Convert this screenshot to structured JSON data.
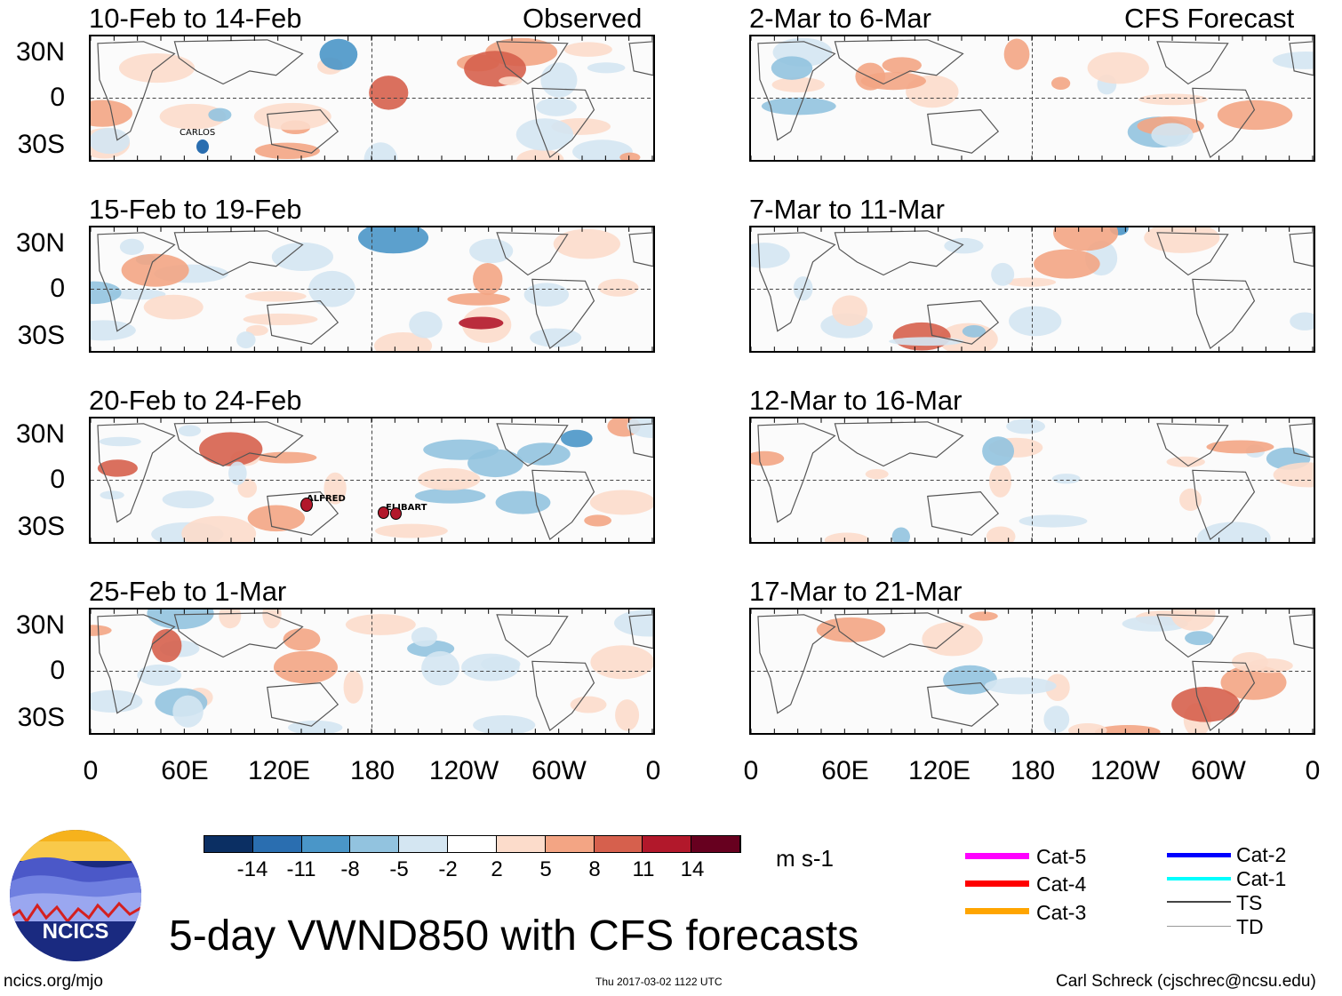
{
  "panels_observed": [
    {
      "title": "10-Feb to 14-Feb",
      "tag": "Observed"
    },
    {
      "title": "15-Feb to 19-Feb"
    },
    {
      "title": "20-Feb to 24-Feb"
    },
    {
      "title": "25-Feb to 1-Mar"
    }
  ],
  "panels_forecast": [
    {
      "title": "2-Mar to 6-Mar",
      "tag": "CFS Forecast"
    },
    {
      "title": "7-Mar to 11-Mar"
    },
    {
      "title": "12-Mar to 16-Mar"
    },
    {
      "title": "17-Mar to 21-Mar"
    }
  ],
  "lat_labels": [
    "30N",
    "0",
    "30S"
  ],
  "lon_labels": [
    "0",
    "60E",
    "120E",
    "180",
    "120W",
    "60W",
    "0"
  ],
  "storms": {
    "carlos": "CARLOS",
    "alfred": "ALFRED",
    "eli": "ELI",
    "bart": "BART"
  },
  "colorbar": {
    "colors": [
      "#0b2f63",
      "#2a6eb0",
      "#4a96c8",
      "#92c3df",
      "#d4e6f2",
      "#ffffff",
      "#fcdccb",
      "#f3a584",
      "#d6604d",
      "#b2182b",
      "#67001f"
    ],
    "labels": [
      "-14",
      "-11",
      "-8",
      "-5",
      "-2",
      "2",
      "5",
      "8",
      "11",
      "14"
    ],
    "units": "m s-1"
  },
  "legend": [
    {
      "label": "Cat-5",
      "color": "#ff00ff"
    },
    {
      "label": "Cat-4",
      "color": "#ff0000"
    },
    {
      "label": "Cat-3",
      "color": "#ffa500"
    },
    {
      "label": "Cat-2",
      "color": "#0000ff"
    },
    {
      "label": "Cat-1",
      "color": "#00ffff"
    },
    {
      "label": "TS",
      "color": "#444444"
    },
    {
      "label": "TD",
      "color": "#999999"
    }
  ],
  "logo_text": "NCICS",
  "main_title": "5-day VWND850 with CFS forecasts",
  "footer": {
    "left": "ncics.org/mjo",
    "center": "Thu 2017-03-02 1122 UTC",
    "right": "Carl Schreck (cjschrec@ncsu.edu)"
  }
}
